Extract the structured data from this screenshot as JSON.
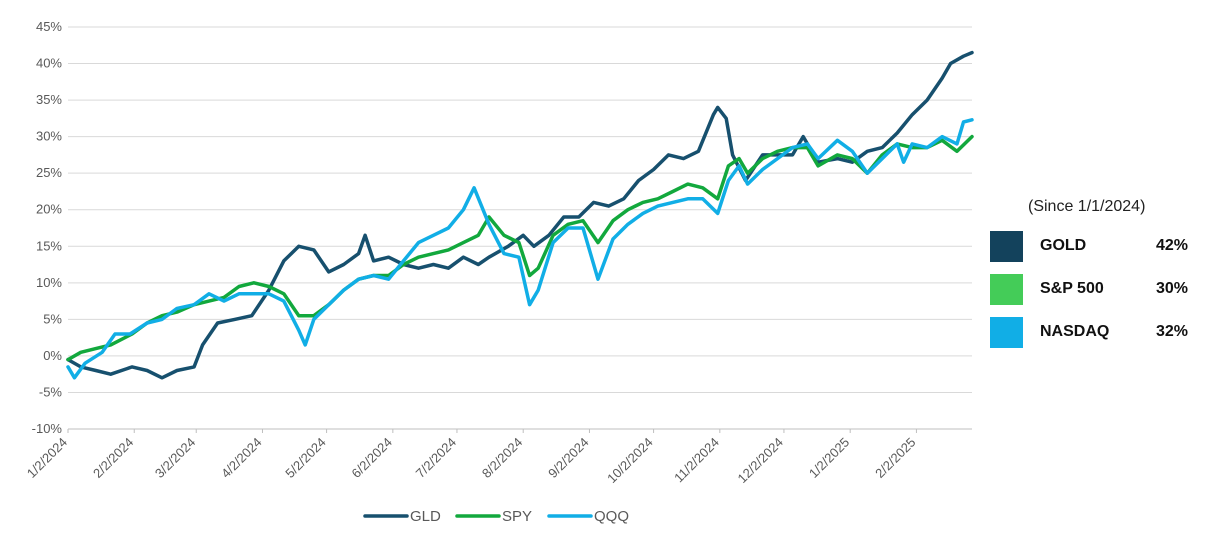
{
  "chart_data": {
    "type": "line",
    "title": "",
    "xlabel": "",
    "ylabel": "",
    "ylim": [
      -10,
      45
    ],
    "y_ticks": [
      "-10%",
      "-5%",
      "0%",
      "5%",
      "10%",
      "15%",
      "20%",
      "25%",
      "30%",
      "35%",
      "40%",
      "45%"
    ],
    "x_ticks": [
      "1/2/2024",
      "2/2/2024",
      "3/2/2024",
      "4/2/2024",
      "5/2/2024",
      "6/2/2024",
      "7/2/2024",
      "8/2/2024",
      "9/2/2024",
      "10/2/2024",
      "11/2/2024",
      "12/2/2024",
      "1/2/2025",
      "2/2/2025"
    ],
    "x_range": [
      "2024-01-02",
      "2025-02-28"
    ],
    "grid": "horizontal",
    "legend_position": "bottom",
    "series": [
      {
        "name": "GLD",
        "color": "#17506e",
        "points": [
          [
            "2024-01-02",
            -0.5
          ],
          [
            "2024-01-08",
            -1.5
          ],
          [
            "2024-01-15",
            -2.0
          ],
          [
            "2024-01-22",
            -2.5
          ],
          [
            "2024-02-01",
            -1.5
          ],
          [
            "2024-02-08",
            -2.0
          ],
          [
            "2024-02-15",
            -3.0
          ],
          [
            "2024-02-22",
            -2.0
          ],
          [
            "2024-03-01",
            -1.5
          ],
          [
            "2024-03-05",
            1.5
          ],
          [
            "2024-03-12",
            4.5
          ],
          [
            "2024-03-20",
            5.0
          ],
          [
            "2024-03-28",
            5.5
          ],
          [
            "2024-04-05",
            9.0
          ],
          [
            "2024-04-12",
            13.0
          ],
          [
            "2024-04-19",
            15.0
          ],
          [
            "2024-04-26",
            14.5
          ],
          [
            "2024-05-03",
            11.5
          ],
          [
            "2024-05-10",
            12.5
          ],
          [
            "2024-05-17",
            14.0
          ],
          [
            "2024-05-20",
            16.5
          ],
          [
            "2024-05-24",
            13.0
          ],
          [
            "2024-05-31",
            13.5
          ],
          [
            "2024-06-07",
            12.5
          ],
          [
            "2024-06-14",
            12.0
          ],
          [
            "2024-06-21",
            12.5
          ],
          [
            "2024-06-28",
            12.0
          ],
          [
            "2024-07-05",
            13.5
          ],
          [
            "2024-07-12",
            12.5
          ],
          [
            "2024-07-17",
            13.5
          ],
          [
            "2024-07-26",
            15.0
          ],
          [
            "2024-08-02",
            16.5
          ],
          [
            "2024-08-07",
            15.0
          ],
          [
            "2024-08-14",
            16.5
          ],
          [
            "2024-08-21",
            19.0
          ],
          [
            "2024-08-28",
            19.0
          ],
          [
            "2024-09-04",
            21.0
          ],
          [
            "2024-09-11",
            20.5
          ],
          [
            "2024-09-18",
            21.5
          ],
          [
            "2024-09-25",
            24.0
          ],
          [
            "2024-10-02",
            25.5
          ],
          [
            "2024-10-09",
            27.5
          ],
          [
            "2024-10-16",
            27.0
          ],
          [
            "2024-10-23",
            28.0
          ],
          [
            "2024-10-30",
            33.0
          ],
          [
            "2024-11-01",
            34.0
          ],
          [
            "2024-11-05",
            32.5
          ],
          [
            "2024-11-08",
            27.5
          ],
          [
            "2024-11-14",
            24.0
          ],
          [
            "2024-11-22",
            27.5
          ],
          [
            "2024-11-29",
            27.5
          ],
          [
            "2024-12-06",
            27.5
          ],
          [
            "2024-12-11",
            30.0
          ],
          [
            "2024-12-18",
            26.5
          ],
          [
            "2024-12-27",
            27.0
          ],
          [
            "2025-01-03",
            26.5
          ],
          [
            "2025-01-10",
            28.0
          ],
          [
            "2025-01-17",
            28.5
          ],
          [
            "2025-01-24",
            30.5
          ],
          [
            "2025-01-31",
            33.0
          ],
          [
            "2025-02-07",
            35.0
          ],
          [
            "2025-02-14",
            38.0
          ],
          [
            "2025-02-18",
            40.0
          ],
          [
            "2025-02-24",
            41.0
          ],
          [
            "2025-02-28",
            41.5
          ]
        ]
      },
      {
        "name": "SPY",
        "color": "#12a83d",
        "points": [
          [
            "2024-01-02",
            -0.5
          ],
          [
            "2024-01-08",
            0.5
          ],
          [
            "2024-01-15",
            1.0
          ],
          [
            "2024-01-22",
            1.5
          ],
          [
            "2024-02-01",
            3.0
          ],
          [
            "2024-02-08",
            4.5
          ],
          [
            "2024-02-15",
            5.5
          ],
          [
            "2024-02-22",
            6.0
          ],
          [
            "2024-03-01",
            7.0
          ],
          [
            "2024-03-08",
            7.5
          ],
          [
            "2024-03-15",
            8.0
          ],
          [
            "2024-03-22",
            9.5
          ],
          [
            "2024-03-29",
            10.0
          ],
          [
            "2024-04-05",
            9.5
          ],
          [
            "2024-04-12",
            8.5
          ],
          [
            "2024-04-19",
            5.5
          ],
          [
            "2024-04-26",
            5.5
          ],
          [
            "2024-05-03",
            7.0
          ],
          [
            "2024-05-10",
            9.0
          ],
          [
            "2024-05-17",
            10.5
          ],
          [
            "2024-05-24",
            11.0
          ],
          [
            "2024-05-31",
            11.0
          ],
          [
            "2024-06-07",
            12.5
          ],
          [
            "2024-06-14",
            13.5
          ],
          [
            "2024-06-21",
            14.0
          ],
          [
            "2024-06-28",
            14.5
          ],
          [
            "2024-07-05",
            15.5
          ],
          [
            "2024-07-12",
            16.5
          ],
          [
            "2024-07-17",
            19.0
          ],
          [
            "2024-07-24",
            16.5
          ],
          [
            "2024-07-31",
            15.5
          ],
          [
            "2024-08-05",
            11.0
          ],
          [
            "2024-08-09",
            12.0
          ],
          [
            "2024-08-16",
            16.5
          ],
          [
            "2024-08-23",
            18.0
          ],
          [
            "2024-08-30",
            18.5
          ],
          [
            "2024-09-06",
            15.5
          ],
          [
            "2024-09-13",
            18.5
          ],
          [
            "2024-09-20",
            20.0
          ],
          [
            "2024-09-27",
            21.0
          ],
          [
            "2024-10-04",
            21.5
          ],
          [
            "2024-10-11",
            22.5
          ],
          [
            "2024-10-18",
            23.5
          ],
          [
            "2024-10-25",
            23.0
          ],
          [
            "2024-11-01",
            21.5
          ],
          [
            "2024-11-06",
            26.0
          ],
          [
            "2024-11-11",
            27.0
          ],
          [
            "2024-11-15",
            25.0
          ],
          [
            "2024-11-22",
            27.0
          ],
          [
            "2024-11-29",
            28.0
          ],
          [
            "2024-12-06",
            28.5
          ],
          [
            "2024-12-13",
            28.5
          ],
          [
            "2024-12-18",
            26.0
          ],
          [
            "2024-12-27",
            27.5
          ],
          [
            "2025-01-03",
            27.0
          ],
          [
            "2025-01-10",
            25.0
          ],
          [
            "2025-01-17",
            27.5
          ],
          [
            "2025-01-24",
            29.0
          ],
          [
            "2025-01-31",
            28.5
          ],
          [
            "2025-02-07",
            28.5
          ],
          [
            "2025-02-14",
            29.5
          ],
          [
            "2025-02-21",
            28.0
          ],
          [
            "2025-02-28",
            30.0
          ]
        ]
      },
      {
        "name": "QQQ",
        "color": "#11aee6",
        "points": [
          [
            "2024-01-02",
            -1.5
          ],
          [
            "2024-01-05",
            -3.0
          ],
          [
            "2024-01-10",
            -1.0
          ],
          [
            "2024-01-18",
            0.5
          ],
          [
            "2024-01-24",
            3.0
          ],
          [
            "2024-01-31",
            3.0
          ],
          [
            "2024-02-08",
            4.5
          ],
          [
            "2024-02-15",
            5.0
          ],
          [
            "2024-02-22",
            6.5
          ],
          [
            "2024-03-01",
            7.0
          ],
          [
            "2024-03-08",
            8.5
          ],
          [
            "2024-03-15",
            7.5
          ],
          [
            "2024-03-22",
            8.5
          ],
          [
            "2024-03-29",
            8.5
          ],
          [
            "2024-04-05",
            8.5
          ],
          [
            "2024-04-12",
            7.5
          ],
          [
            "2024-04-19",
            3.5
          ],
          [
            "2024-04-22",
            1.5
          ],
          [
            "2024-04-26",
            5.0
          ],
          [
            "2024-05-03",
            7.0
          ],
          [
            "2024-05-10",
            9.0
          ],
          [
            "2024-05-17",
            10.5
          ],
          [
            "2024-05-24",
            11.0
          ],
          [
            "2024-05-31",
            10.5
          ],
          [
            "2024-06-07",
            13.0
          ],
          [
            "2024-06-14",
            15.5
          ],
          [
            "2024-06-21",
            16.5
          ],
          [
            "2024-06-28",
            17.5
          ],
          [
            "2024-07-05",
            20.0
          ],
          [
            "2024-07-10",
            23.0
          ],
          [
            "2024-07-17",
            18.0
          ],
          [
            "2024-07-24",
            14.0
          ],
          [
            "2024-07-31",
            13.5
          ],
          [
            "2024-08-05",
            7.0
          ],
          [
            "2024-08-09",
            9.0
          ],
          [
            "2024-08-16",
            15.5
          ],
          [
            "2024-08-23",
            17.5
          ],
          [
            "2024-08-30",
            17.5
          ],
          [
            "2024-09-06",
            10.5
          ],
          [
            "2024-09-13",
            16.0
          ],
          [
            "2024-09-20",
            18.0
          ],
          [
            "2024-09-27",
            19.5
          ],
          [
            "2024-10-04",
            20.5
          ],
          [
            "2024-10-11",
            21.0
          ],
          [
            "2024-10-18",
            21.5
          ],
          [
            "2024-10-25",
            21.5
          ],
          [
            "2024-11-01",
            19.5
          ],
          [
            "2024-11-06",
            24.0
          ],
          [
            "2024-11-11",
            26.0
          ],
          [
            "2024-11-15",
            23.5
          ],
          [
            "2024-11-22",
            25.5
          ],
          [
            "2024-11-29",
            27.0
          ],
          [
            "2024-12-06",
            28.5
          ],
          [
            "2024-12-13",
            29.0
          ],
          [
            "2024-12-18",
            27.0
          ],
          [
            "2024-12-27",
            29.5
          ],
          [
            "2025-01-03",
            28.0
          ],
          [
            "2025-01-10",
            25.0
          ],
          [
            "2025-01-17",
            27.0
          ],
          [
            "2025-01-24",
            29.0
          ],
          [
            "2025-01-27",
            26.5
          ],
          [
            "2025-01-31",
            29.0
          ],
          [
            "2025-02-07",
            28.5
          ],
          [
            "2025-02-14",
            30.0
          ],
          [
            "2025-02-21",
            29.0
          ],
          [
            "2025-02-24",
            32.0
          ],
          [
            "2025-02-28",
            32.3
          ]
        ]
      }
    ]
  },
  "side_panel": {
    "title": "(Since 1/1/2024)",
    "rows": [
      {
        "label": "GOLD",
        "value": "42%",
        "color": "#13425c"
      },
      {
        "label": "S&P 500",
        "value": "30%",
        "color": "#44cc58"
      },
      {
        "label": "NASDAQ",
        "value": "32%",
        "color": "#11aee6"
      }
    ]
  }
}
